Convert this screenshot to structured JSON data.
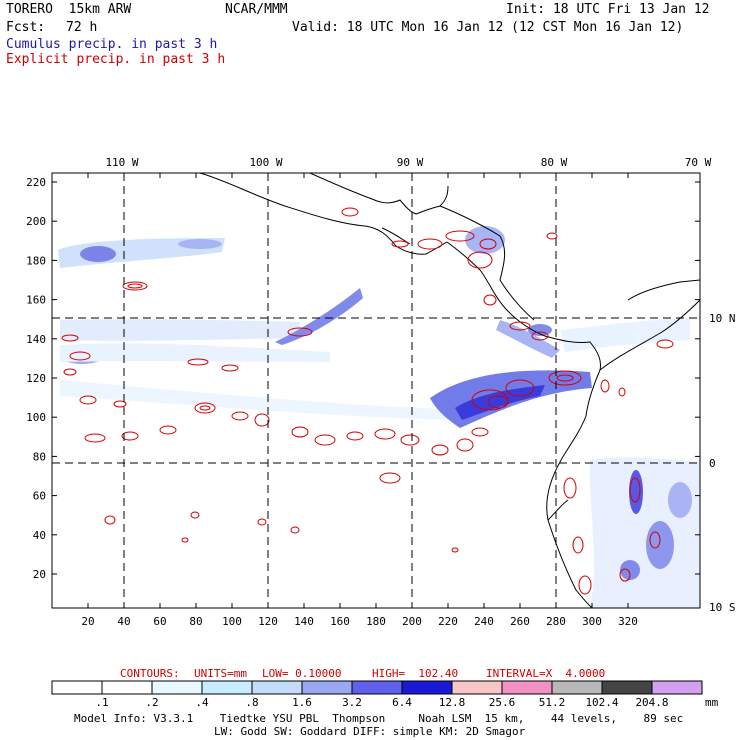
{
  "header": {
    "model": "TORERO  15km ARW",
    "org": "NCAR/MMM",
    "init": "Init: 18 UTC Fri 13 Jan 12",
    "fcst_label": "Fcst:",
    "fcst_value": "72 h",
    "valid": "Valid: 18 UTC Mon 16 Jan 12 (12 CST Mon 16 Jan 12)",
    "field1": "Cumulus precip. in past 3 h",
    "field2": "Explicit precip. in past 3 h"
  },
  "map": {
    "top_lon_labels": [
      "110 W",
      "100 W",
      "90 W",
      "80 W",
      "70 W"
    ],
    "right_lat_labels": [
      "10 N",
      "0",
      "10 S"
    ],
    "y_ticks": [
      "220",
      "200",
      "180",
      "160",
      "140",
      "120",
      "100",
      "80",
      "60",
      "40",
      "20"
    ],
    "x_ticks": [
      "20",
      "40",
      "60",
      "80",
      "100",
      "120",
      "140",
      "160",
      "180",
      "200",
      "220",
      "240",
      "260",
      "280",
      "300",
      "320"
    ]
  },
  "contours": {
    "label": "CONTOURS:",
    "units": "UNITS=mm",
    "low": "LOW= 0.10000",
    "high": "HIGH=  102.40",
    "interval": "INTERVAL=X  4.0000"
  },
  "colorbar": {
    "labels": [
      ".1",
      ".2",
      ".4",
      ".8",
      "1.6",
      "3.2",
      "6.4",
      "12.8",
      "25.6",
      "51.2",
      "102.4",
      "204.8"
    ],
    "unit": "mm",
    "colors": [
      "#ffffff",
      "#ffffff",
      "#e9f7ff",
      "#c8ebff",
      "#c3dcfa",
      "#9aa7f3",
      "#6060ea",
      "#1a1ad6",
      "#f7c7c7",
      "#f291c3",
      "#b8b8b8",
      "#444444",
      "#d3a0ef"
    ]
  },
  "footer": {
    "line1": "Model Info: V3.3.1    Tiedtke YSU PBL  Thompson     Noah LSM  15 km,    44 levels,    89 sec",
    "line2": "LW: Godd SW: Goddard DIFF: simple KM: 2D Smagor"
  }
}
